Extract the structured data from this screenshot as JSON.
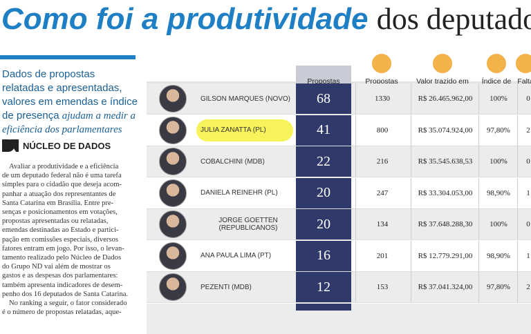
{
  "header": {
    "title_highlight": "Como foi a produtividade",
    "title_rest": "dos deputados"
  },
  "intro": {
    "text": "Dados de propostas relatadas e apresentadas, valores em emendas e índice de presença",
    "emphasis": "ajudam a medir a eficiência dos parlamentares"
  },
  "logo": {
    "label": "NÚCLEO DE DADOS"
  },
  "body": {
    "paragraphs": [
      [
        "Avaliar a produtividade e a eficiência",
        "de um deputado federal não é uma tarefa",
        "simples para o cidadão que deseja acom-",
        "panhar a atuação dos representantes de",
        "Santa Catarina em Brasília. Entre pre-",
        "senças e posicionamentos em votações,",
        "propostas apresentadas ou relatadas,",
        "emendas destinadas ao Estado e partici-",
        "pação em comissões especiais, diversos",
        "fatores entram em jogo. Por isso, o levan-",
        "tamento realizado pelo Núcleo de Dados",
        "do Grupo ND vai além de mostrar os",
        "gastos e as despesas dos parlamentares:",
        "também apresenta indicadores de desem-",
        "penho dos 16 deputados de Santa Catarina."
      ],
      [
        "No ranking a seguir, o fator considerado",
        "é o número de propostas relatadas, aque-"
      ]
    ]
  },
  "table": {
    "columns": [
      "Propostas relatadas",
      "Propostas apresentadas",
      "Valor trazido em emendas",
      "Índice de presença",
      "Falta"
    ],
    "rows": [
      [
        "GILSON MARQUES (NOVO)",
        "68",
        "1330",
        "R$ 26.465.962,00",
        "100%",
        "0"
      ],
      [
        "JULIA ZANATTA (PL)",
        "41",
        "800",
        "R$ 35.074.924,00",
        "97,80%",
        "2"
      ],
      [
        "COBALCHINI (MDB)",
        "22",
        "216",
        "R$ 35.545.638,53",
        "100%",
        "0"
      ],
      [
        "DANIELA REINEHR (PL)",
        "20",
        "247",
        "R$ 33.304.053,00",
        "98,90%",
        "1"
      ],
      [
        "JORGE GOETTEN (REPUBLICANOS)",
        "20",
        "134",
        "R$ 37.648.288,30",
        "100%",
        "0"
      ],
      [
        "ANA PAULA LIMA (PT)",
        "16",
        "201",
        "R$ 12.779.291,00",
        "98,90%",
        "1"
      ],
      [
        "PEZENTI (MDB)",
        "12",
        "153",
        "R$ 37.041.324,00",
        "97,80%",
        "2"
      ]
    ]
  }
}
